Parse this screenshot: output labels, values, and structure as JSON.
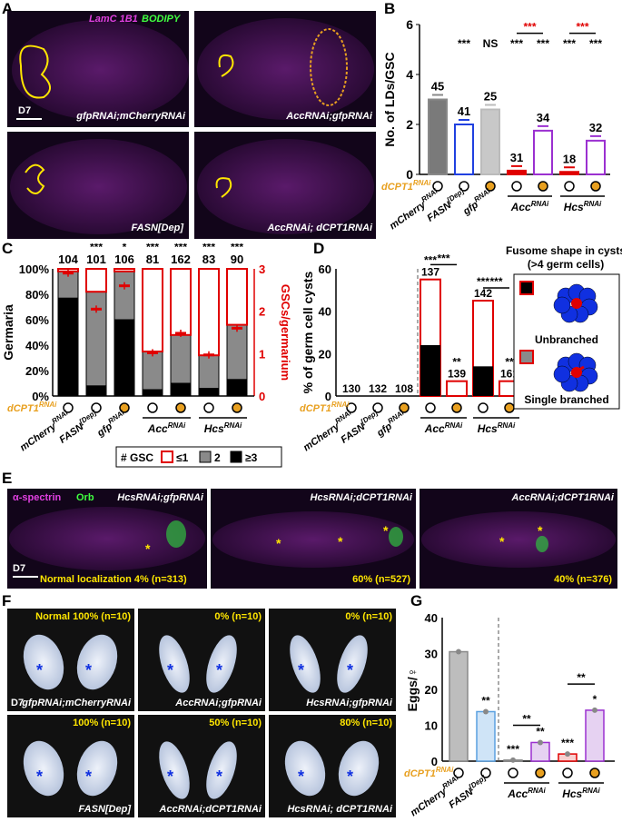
{
  "panels": {
    "A": "A",
    "B": "B",
    "C": "C",
    "D": "D",
    "E": "E",
    "F": "F",
    "G": "G"
  },
  "panelA": {
    "legend_lamc": "LamC 1B1",
    "legend_bodipy": "BODIPY",
    "scale": "D7",
    "captions": [
      "gfpRNAi;mCherryRNAi",
      "AccRNAi;gfpRNAi",
      "FASN[Dep]",
      "AccRNAi; dCPT1RNAi"
    ]
  },
  "colors": {
    "magenta": "#e040e0",
    "green": "#40ff40",
    "yellow": "#ffe600",
    "red": "#e00000",
    "orange": "#e8a020",
    "purple": "#9b30d0",
    "blue": "#2040e0"
  },
  "chart_data": [
    {
      "panel": "B",
      "type": "bar",
      "ylabel": "No. of LDs/GSC",
      "ylim": [
        0,
        6
      ],
      "yticks": [
        "0",
        "2",
        "4",
        "6"
      ],
      "categories": [
        "mCherryRNAi",
        "FASN[Dep]",
        "gfpRNAi",
        "AccRNAi",
        "AccRNAi",
        "HcsRNAi",
        "HcsRNAi"
      ],
      "dCPT1": [
        "o",
        "o",
        "x",
        "o",
        "x",
        "o",
        "x"
      ],
      "values": [
        3.0,
        2.0,
        2.6,
        0.15,
        1.75,
        0.1,
        1.35
      ],
      "n": [
        "45",
        "41",
        "25",
        "31",
        "34",
        "18",
        "32"
      ],
      "sig_top": [
        "",
        "***",
        "NS",
        "***",
        "***",
        "***",
        "***"
      ],
      "sig_pair": [
        "***",
        "***"
      ],
      "xlabel_row": "dCPT1RNAi"
    },
    {
      "panel": "C",
      "type": "bar",
      "ylabel": "Germaria",
      "ylabel2": "GSCs/germarium",
      "yticks": [
        "0%",
        "20%",
        "40%",
        "60%",
        "80%",
        "100%"
      ],
      "yticks2": [
        "0",
        "1",
        "2",
        "3"
      ],
      "categories": [
        "mCherryRNAi",
        "FASN[Dep]",
        "gfpRNAi",
        "AccRNAi",
        "AccRNAi",
        "HcsRNAi",
        "HcsRNAi"
      ],
      "dCPT1": [
        "o",
        "o",
        "x",
        "o",
        "x",
        "o",
        "x"
      ],
      "series": [
        {
          "name": "≥3",
          "values": [
            77,
            8,
            60,
            5,
            10,
            6,
            13
          ]
        },
        {
          "name": "2",
          "values": [
            21,
            74,
            38,
            30,
            38,
            26,
            43
          ]
        },
        {
          "name": "≤1",
          "values": [
            2,
            18,
            2,
            65,
            52,
            68,
            44
          ]
        }
      ],
      "gsc_per_germarium": [
        2.9,
        2.05,
        2.6,
        1.02,
        1.48,
        0.97,
        1.6
      ],
      "n": [
        "104",
        "101",
        "106",
        "81",
        "162",
        "83",
        "90"
      ],
      "sig_top": [
        "",
        "***",
        "*",
        "***",
        "***",
        "***",
        "***"
      ],
      "sig_pair": [
        "**",
        "**"
      ],
      "legend_title": "# GSC"
    },
    {
      "panel": "D",
      "type": "bar",
      "ylabel": "% of germ cell cysts",
      "ylim": [
        0,
        60
      ],
      "yticks": [
        "0",
        "20",
        "40",
        "60"
      ],
      "categories": [
        "mCherryRNAi",
        "FASN[Dep]",
        "gfpRNAi",
        "AccRNAi",
        "AccRNAi",
        "HcsRNAi",
        "HcsRNAi"
      ],
      "dCPT1": [
        "o",
        "o",
        "x",
        "o",
        "x",
        "o",
        "x"
      ],
      "series": [
        {
          "name": "Unbranched",
          "values": [
            0,
            0,
            0,
            24,
            0,
            14,
            0
          ]
        },
        {
          "name": "Single branched",
          "values": [
            0,
            0,
            0,
            31,
            7,
            31,
            7
          ]
        }
      ],
      "n": [
        "130",
        "132",
        "108",
        "137",
        "139",
        "142",
        "161"
      ],
      "sig_top": [
        "",
        "",
        "",
        "***",
        "**",
        "***",
        "**"
      ],
      "sig_pair": [
        "***",
        "***"
      ],
      "legend_title": "Fusome shape in cysts (>4 germ cells)"
    },
    {
      "panel": "G",
      "type": "bar",
      "ylabel": "Eggs/♀",
      "ylim": [
        0,
        40
      ],
      "yticks": [
        "0",
        "10",
        "20",
        "30",
        "40"
      ],
      "categories": [
        "mCherryRNAi",
        "FASN[Dep]",
        "AccRNAi",
        "AccRNAi",
        "HcsRNAi",
        "HcsRNAi"
      ],
      "dCPT1": [
        "o",
        "o",
        "o",
        "x",
        "o",
        "x"
      ],
      "values": [
        30.5,
        13.8,
        0.3,
        5.2,
        2.0,
        14.2
      ],
      "sig_top": [
        "",
        "**",
        "***",
        "**",
        "***",
        "*"
      ],
      "sig_pair": [
        "**",
        "**"
      ]
    }
  ],
  "shared": {
    "dcpt1_label": "dCPT1RNAi",
    "acc_label": "AccRNAi",
    "hcs_label": "HcsRNAi",
    "mcherry": "mCherryRNAi",
    "fasn": "FASN[Dep]",
    "gfp": "gfpRNAi",
    "legend_le1": "≤1",
    "legend_2": "2",
    "legend_ge3": "≥3",
    "unbranched": "Unbranched",
    "single_branched": "Single branched",
    "fusome_title_1": "Fusome shape in cysts",
    "fusome_title_2": "(>4 germ cells)"
  },
  "panelE": {
    "legend_spectrin": "α-spectrin",
    "legend_orb": "Orb",
    "scale": "D7",
    "captions": [
      "HcsRNAi;gfpRNAi",
      "HcsRNAi;dCPT1RNAi",
      "AccRNAi;dCPT1RNAi"
    ],
    "stats": [
      "Normal localization 4% (n=313)",
      "60% (n=527)",
      "40% (n=376)"
    ]
  },
  "panelF": {
    "scale": "D7",
    "captions": [
      "gfpRNAi;mCherryRNAi",
      "AccRNAi;gfpRNAi",
      "HcsRNAi;gfpRNAi",
      "FASN[Dep]",
      "AccRNAi;dCPT1RNAi",
      "HcsRNAi; dCPT1RNAi"
    ],
    "stats": [
      "Normal 100% (n=10)",
      "0% (n=10)",
      "0% (n=10)",
      "100% (n=10)",
      "50% (n=10)",
      "80% (n=10)"
    ]
  }
}
